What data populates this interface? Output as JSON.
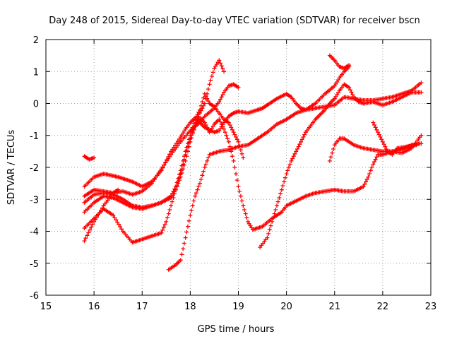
{
  "chart_data": {
    "type": "scatter",
    "title": "Day 248 of 2015, Sidereal Day-to-day VTEC variation (SDTVAR) for receiver bscn",
    "xlabel": "GPS time / hours",
    "ylabel": "SDTVAR / TECUs",
    "xlim": [
      15,
      23
    ],
    "ylim": [
      -6,
      2
    ],
    "xticks": [
      "15",
      "16",
      "17",
      "18",
      "19",
      "20",
      "21",
      "22",
      "23"
    ],
    "yticks": [
      "-6",
      "-5",
      "-4",
      "-3",
      "-2",
      "-1",
      "0",
      "1",
      "2"
    ],
    "grid": true,
    "marker": "plus",
    "color": "#ff0000",
    "series": [
      {
        "points": [
          [
            15.8,
            -1.65
          ],
          [
            15.9,
            -1.75
          ],
          [
            16.0,
            -1.7
          ]
        ]
      },
      {
        "points": [
          [
            15.8,
            -2.6
          ],
          [
            16.0,
            -2.3
          ],
          [
            16.2,
            -2.2
          ],
          [
            16.5,
            -2.3
          ],
          [
            16.8,
            -2.45
          ],
          [
            17.0,
            -2.6
          ],
          [
            17.2,
            -2.45
          ],
          [
            17.4,
            -2.1
          ],
          [
            17.6,
            -1.5
          ],
          [
            17.8,
            -1.05
          ],
          [
            17.9,
            -0.8
          ],
          [
            18.0,
            -0.6
          ],
          [
            18.1,
            -0.45
          ],
          [
            18.2,
            -0.6
          ],
          [
            18.3,
            -0.75
          ],
          [
            18.5,
            -0.9
          ],
          [
            18.6,
            -0.85
          ],
          [
            18.7,
            -0.6
          ],
          [
            18.8,
            -0.4
          ],
          [
            18.9,
            -0.3
          ],
          [
            19.0,
            -0.25
          ],
          [
            19.2,
            -0.3
          ],
          [
            19.4,
            -0.2
          ],
          [
            19.5,
            -0.15
          ],
          [
            19.6,
            -0.05
          ],
          [
            19.8,
            0.15
          ],
          [
            20.0,
            0.3
          ],
          [
            20.1,
            0.2
          ],
          [
            20.2,
            0.0
          ],
          [
            20.3,
            -0.15
          ],
          [
            20.4,
            -0.2
          ],
          [
            20.6,
            0.0
          ],
          [
            20.8,
            0.3
          ],
          [
            21.0,
            0.55
          ],
          [
            21.1,
            0.8
          ],
          [
            21.2,
            1.0
          ],
          [
            21.3,
            1.15
          ]
        ]
      },
      {
        "points": [
          [
            15.8,
            -2.9
          ],
          [
            16.0,
            -2.7
          ],
          [
            16.2,
            -2.75
          ],
          [
            16.4,
            -2.8
          ],
          [
            16.6,
            -2.75
          ],
          [
            16.8,
            -2.85
          ],
          [
            17.0,
            -2.75
          ],
          [
            17.2,
            -2.5
          ],
          [
            17.4,
            -2.05
          ],
          [
            17.6,
            -1.6
          ],
          [
            17.8,
            -1.2
          ],
          [
            18.0,
            -0.85
          ],
          [
            18.2,
            -0.6
          ],
          [
            18.3,
            -0.4
          ],
          [
            18.5,
            -0.15
          ],
          [
            18.6,
            0.05
          ],
          [
            18.7,
            0.35
          ],
          [
            18.8,
            0.55
          ],
          [
            18.9,
            0.6
          ],
          [
            19.0,
            0.5
          ]
        ]
      },
      {
        "points": [
          [
            15.8,
            -3.1
          ],
          [
            16.0,
            -2.85
          ],
          [
            16.2,
            -2.8
          ],
          [
            16.4,
            -2.85
          ],
          [
            16.6,
            -3.0
          ],
          [
            16.8,
            -3.2
          ],
          [
            17.0,
            -3.25
          ],
          [
            17.2,
            -3.2
          ],
          [
            17.4,
            -3.1
          ],
          [
            17.6,
            -2.95
          ],
          [
            17.7,
            -2.7
          ],
          [
            17.8,
            -2.3
          ],
          [
            17.9,
            -1.8
          ],
          [
            18.0,
            -1.2
          ],
          [
            18.1,
            -0.7
          ],
          [
            18.2,
            -0.3
          ],
          [
            18.3,
            0.0
          ],
          [
            18.4,
            0.6
          ],
          [
            18.5,
            1.1
          ],
          [
            18.6,
            1.35
          ],
          [
            18.7,
            1.0
          ]
        ]
      },
      {
        "points": [
          [
            15.8,
            -3.4
          ],
          [
            16.0,
            -3.1
          ],
          [
            16.2,
            -2.9
          ],
          [
            16.4,
            -2.95
          ],
          [
            16.6,
            -3.1
          ],
          [
            16.8,
            -3.25
          ],
          [
            17.0,
            -3.3
          ],
          [
            17.2,
            -3.2
          ],
          [
            17.4,
            -3.1
          ],
          [
            17.6,
            -2.9
          ],
          [
            17.7,
            -2.6
          ],
          [
            17.8,
            -2.1
          ],
          [
            17.9,
            -1.5
          ],
          [
            18.0,
            -1.0
          ],
          [
            18.1,
            -0.5
          ],
          [
            18.2,
            -0.2
          ],
          [
            18.3,
            0.3
          ],
          [
            18.4,
            0.0
          ],
          [
            18.5,
            -0.1
          ],
          [
            18.6,
            -0.3
          ],
          [
            18.7,
            -0.5
          ],
          [
            18.8,
            -0.6
          ],
          [
            18.9,
            -0.9
          ],
          [
            19.0,
            -1.2
          ],
          [
            19.1,
            -1.7
          ]
        ]
      },
      {
        "points": [
          [
            15.8,
            -3.9
          ],
          [
            16.0,
            -3.6
          ],
          [
            16.2,
            -3.3
          ],
          [
            16.4,
            -3.5
          ],
          [
            16.6,
            -4.0
          ],
          [
            16.8,
            -4.35
          ],
          [
            17.0,
            -4.25
          ],
          [
            17.2,
            -4.15
          ],
          [
            17.4,
            -4.05
          ],
          [
            17.5,
            -3.7
          ],
          [
            17.6,
            -3.2
          ],
          [
            17.7,
            -2.7
          ],
          [
            17.8,
            -2.2
          ],
          [
            17.9,
            -1.6
          ],
          [
            18.0,
            -1.1
          ],
          [
            18.1,
            -0.7
          ],
          [
            18.2,
            -0.45
          ],
          [
            18.3,
            -0.6
          ],
          [
            18.4,
            -0.9
          ],
          [
            18.5,
            -0.65
          ],
          [
            18.6,
            -0.5
          ],
          [
            18.7,
            -0.8
          ],
          [
            18.8,
            -1.2
          ],
          [
            18.9,
            -1.8
          ],
          [
            19.0,
            -2.6
          ],
          [
            19.1,
            -3.2
          ],
          [
            19.2,
            -3.7
          ],
          [
            19.3,
            -3.95
          ],
          [
            19.5,
            -3.85
          ],
          [
            19.7,
            -3.6
          ],
          [
            19.9,
            -3.4
          ],
          [
            20.0,
            -3.2
          ],
          [
            20.2,
            -3.05
          ],
          [
            20.4,
            -2.9
          ],
          [
            20.6,
            -2.8
          ],
          [
            20.8,
            -2.75
          ],
          [
            21.0,
            -2.7
          ],
          [
            21.2,
            -2.75
          ],
          [
            21.4,
            -2.75
          ],
          [
            21.6,
            -2.6
          ],
          [
            21.7,
            -2.3
          ],
          [
            21.8,
            -1.9
          ],
          [
            21.9,
            -1.6
          ],
          [
            22.0,
            -1.6
          ],
          [
            22.2,
            -1.5
          ],
          [
            22.4,
            -1.45
          ],
          [
            22.6,
            -1.3
          ],
          [
            22.8,
            -1.25
          ]
        ]
      },
      {
        "points": [
          [
            15.8,
            -4.3
          ],
          [
            16.0,
            -3.7
          ],
          [
            16.2,
            -3.2
          ],
          [
            16.4,
            -2.8
          ],
          [
            16.5,
            -2.7
          ]
        ]
      },
      {
        "points": [
          [
            17.55,
            -5.2
          ],
          [
            17.7,
            -5.05
          ],
          [
            17.8,
            -4.9
          ],
          [
            17.9,
            -4.2
          ],
          [
            18.0,
            -3.5
          ],
          [
            18.1,
            -2.9
          ],
          [
            18.2,
            -2.5
          ],
          [
            18.3,
            -2.0
          ],
          [
            18.4,
            -1.6
          ],
          [
            18.6,
            -1.5
          ],
          [
            18.8,
            -1.45
          ],
          [
            19.0,
            -1.35
          ],
          [
            19.2,
            -1.3
          ],
          [
            19.4,
            -1.1
          ],
          [
            19.6,
            -0.9
          ],
          [
            19.8,
            -0.65
          ],
          [
            20.0,
            -0.5
          ],
          [
            20.2,
            -0.3
          ],
          [
            20.4,
            -0.2
          ],
          [
            20.6,
            -0.15
          ],
          [
            20.8,
            -0.1
          ],
          [
            21.0,
            -0.05
          ],
          [
            21.2,
            0.2
          ],
          [
            21.4,
            0.15
          ],
          [
            21.6,
            0.1
          ],
          [
            21.8,
            0.1
          ],
          [
            22.0,
            0.15
          ],
          [
            22.2,
            0.2
          ],
          [
            22.4,
            0.3
          ],
          [
            22.6,
            0.4
          ],
          [
            22.8,
            0.65
          ]
        ]
      },
      {
        "points": [
          [
            19.45,
            -4.5
          ],
          [
            19.6,
            -4.2
          ],
          [
            19.7,
            -3.7
          ],
          [
            19.8,
            -3.2
          ],
          [
            19.9,
            -2.7
          ],
          [
            20.0,
            -2.2
          ],
          [
            20.1,
            -1.8
          ],
          [
            20.2,
            -1.5
          ],
          [
            20.3,
            -1.2
          ],
          [
            20.4,
            -0.9
          ],
          [
            20.5,
            -0.7
          ],
          [
            20.6,
            -0.5
          ],
          [
            20.7,
            -0.35
          ],
          [
            20.8,
            -0.2
          ],
          [
            20.9,
            0.0
          ],
          [
            21.0,
            0.15
          ],
          [
            21.1,
            0.4
          ],
          [
            21.2,
            0.6
          ],
          [
            21.3,
            0.5
          ],
          [
            21.4,
            0.2
          ],
          [
            21.5,
            0.05
          ],
          [
            21.6,
            0.0
          ],
          [
            21.8,
            0.05
          ],
          [
            22.0,
            -0.05
          ],
          [
            22.2,
            0.05
          ],
          [
            22.4,
            0.2
          ],
          [
            22.6,
            0.35
          ],
          [
            22.8,
            0.35
          ]
        ]
      },
      {
        "points": [
          [
            20.9,
            1.5
          ],
          [
            21.0,
            1.35
          ],
          [
            21.1,
            1.15
          ],
          [
            21.2,
            1.1
          ],
          [
            21.3,
            1.2
          ]
        ]
      },
      {
        "points": [
          [
            20.9,
            -1.8
          ],
          [
            21.0,
            -1.3
          ],
          [
            21.1,
            -1.1
          ],
          [
            21.2,
            -1.1
          ],
          [
            21.4,
            -1.3
          ],
          [
            21.6,
            -1.4
          ],
          [
            21.8,
            -1.45
          ],
          [
            22.0,
            -1.5
          ],
          [
            22.2,
            -1.5
          ],
          [
            22.4,
            -1.55
          ],
          [
            22.6,
            -1.4
          ],
          [
            22.8,
            -1.0
          ]
        ]
      },
      {
        "points": [
          [
            21.8,
            -0.6
          ],
          [
            21.9,
            -0.9
          ],
          [
            22.0,
            -1.2
          ],
          [
            22.1,
            -1.5
          ],
          [
            22.2,
            -1.6
          ],
          [
            22.3,
            -1.4
          ],
          [
            22.5,
            -1.35
          ],
          [
            22.7,
            -1.3
          ]
        ]
      }
    ]
  }
}
